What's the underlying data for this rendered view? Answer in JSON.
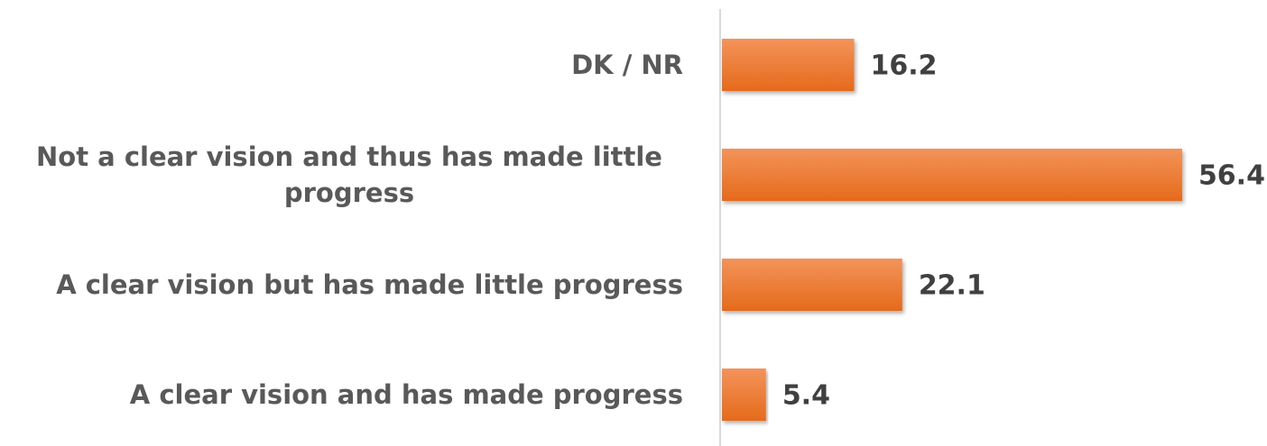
{
  "chart_data": {
    "type": "bar",
    "orientation": "horizontal",
    "categories": [
      "DK / NR",
      "Not a clear vision and thus has made little progress",
      "A clear vision but has made little progress",
      "A clear vision and has made progress"
    ],
    "values": [
      16.2,
      56.4,
      22.1,
      5.4
    ],
    "color": "#ec7a32",
    "xlim": [
      0,
      60
    ]
  }
}
